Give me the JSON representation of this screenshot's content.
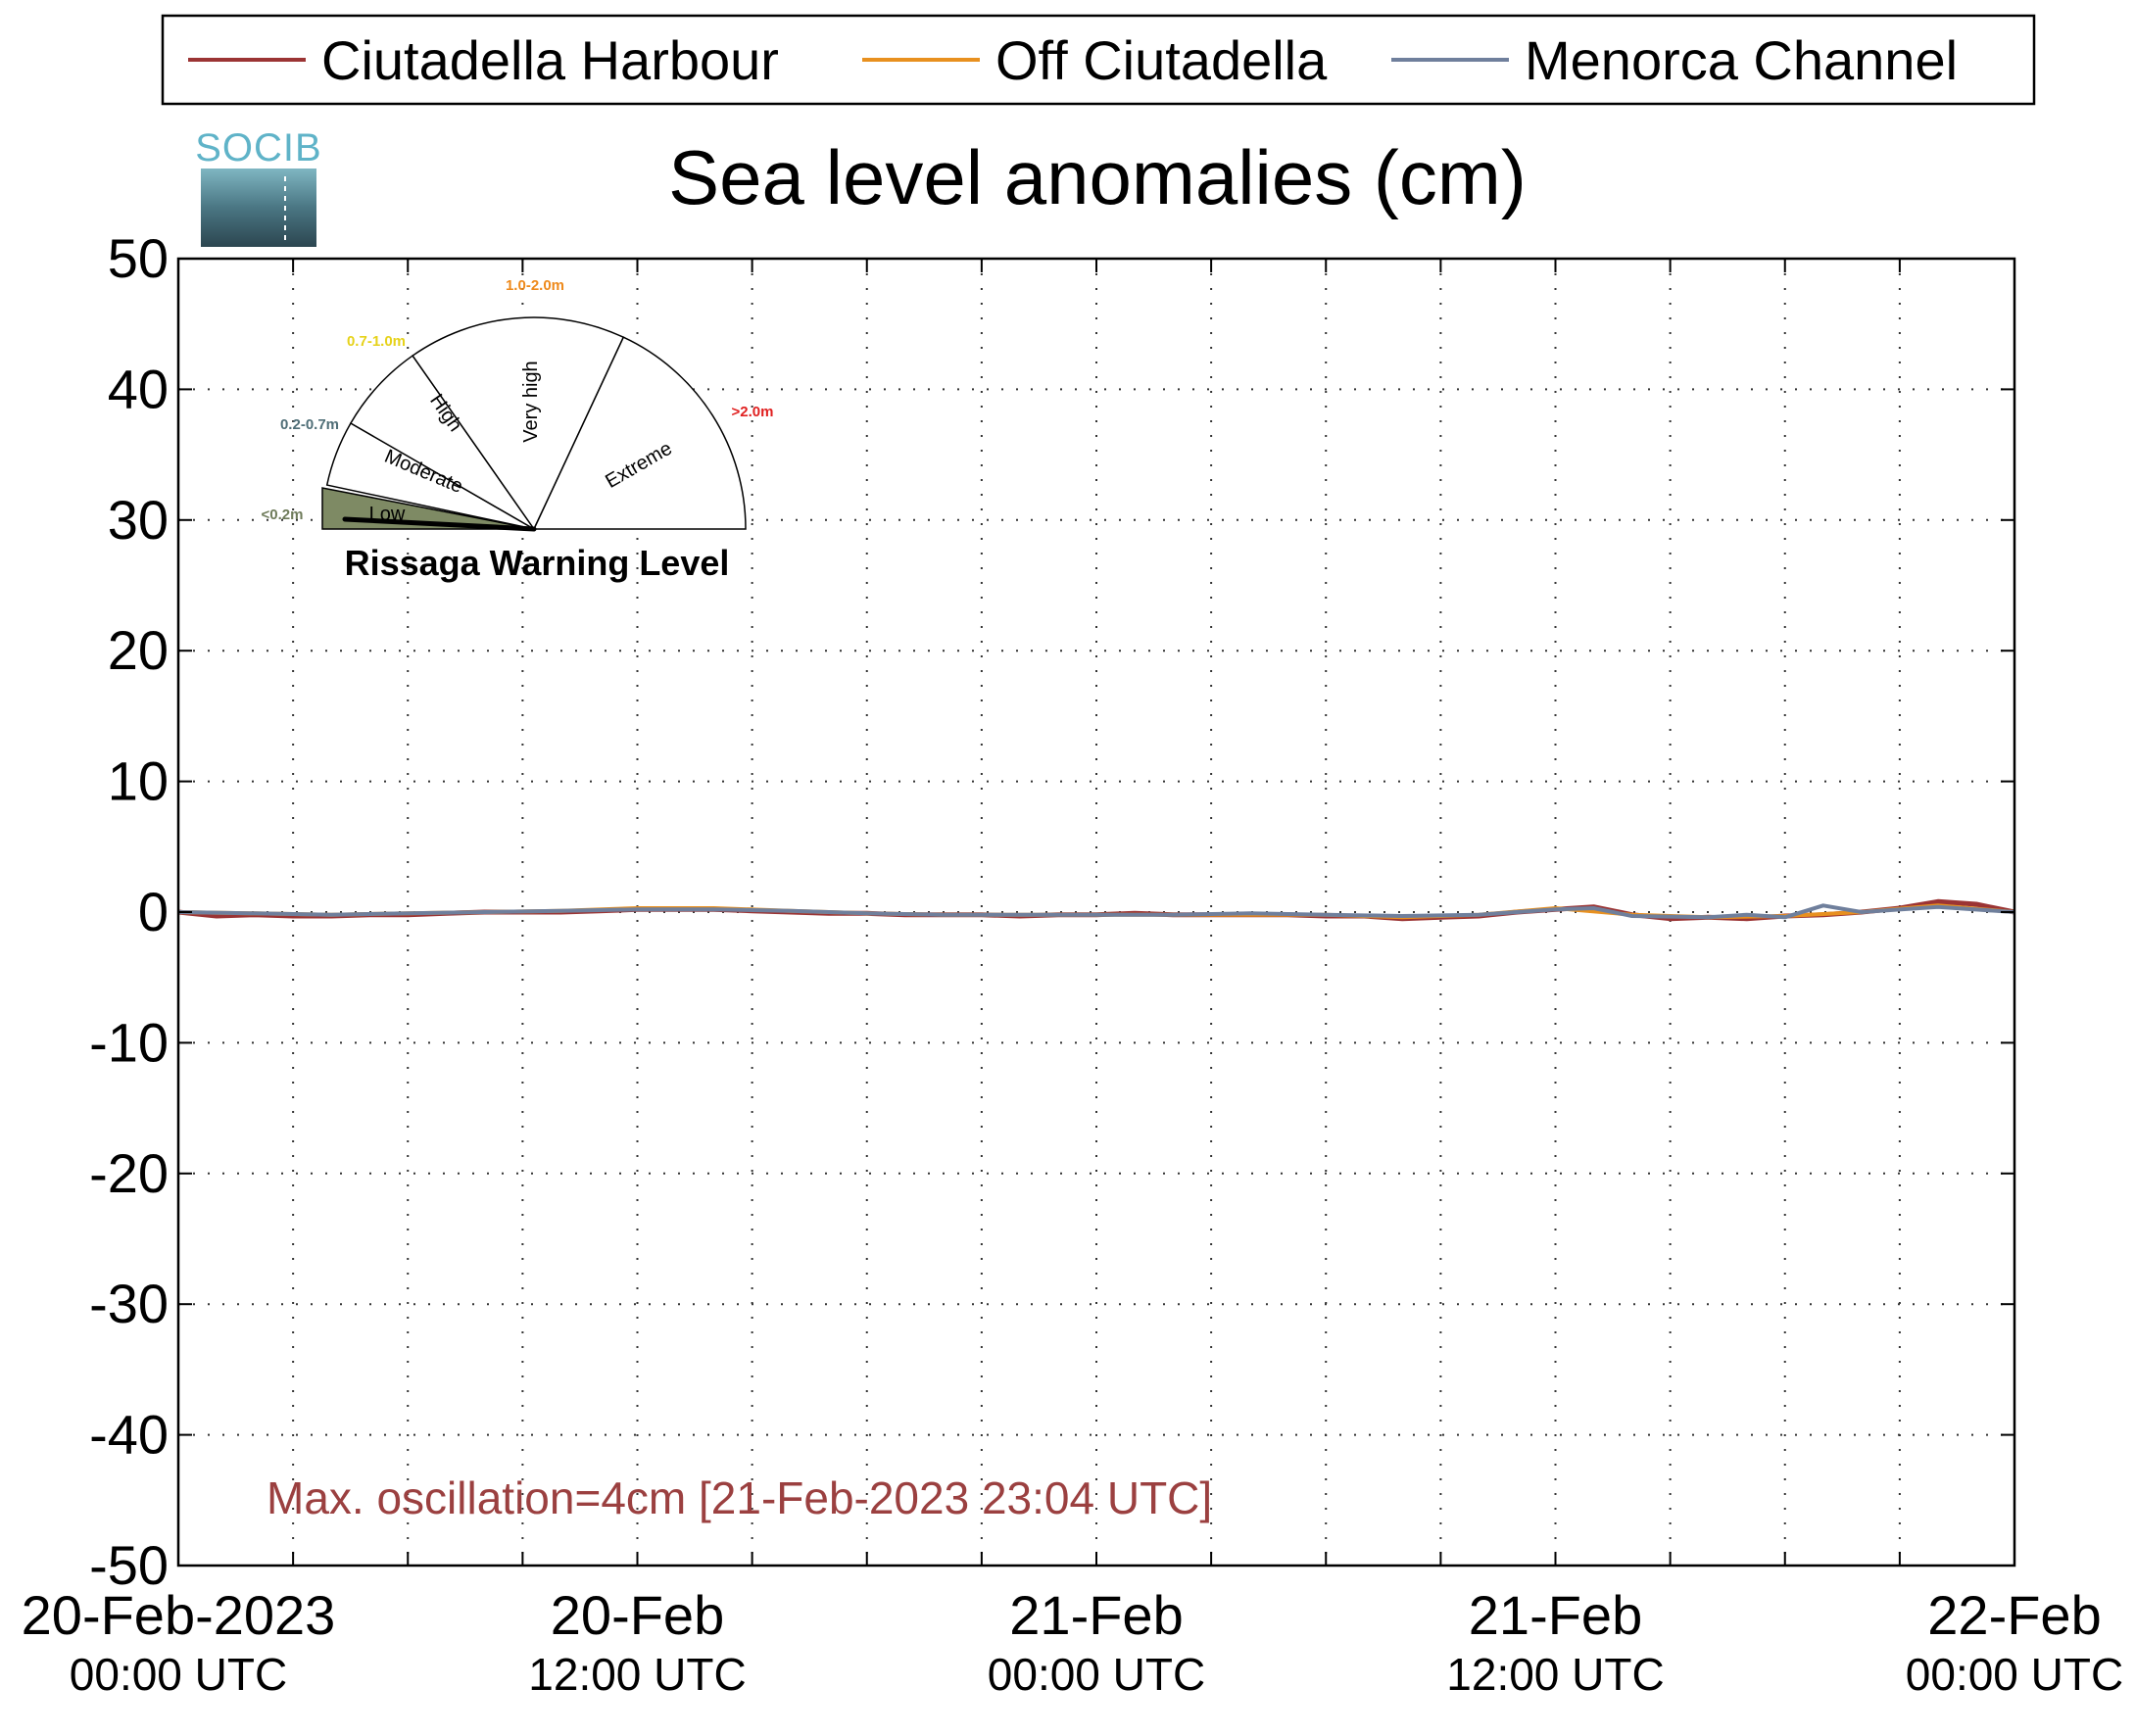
{
  "legend": {
    "entries": [
      {
        "label": "Ciutadella Harbour",
        "color": "#9b3434"
      },
      {
        "label": "Off Ciutadella",
        "color": "#e8901f"
      },
      {
        "label": "Menorca Channel",
        "color": "#6f7f9c"
      }
    ]
  },
  "logo_text": "SOCIB",
  "chart_data": {
    "type": "line",
    "title": "Sea level anomalies (cm)",
    "xlabel": "",
    "ylabel": "",
    "ylim": [
      -50,
      50
    ],
    "yticks": [
      50,
      40,
      30,
      20,
      10,
      0,
      -10,
      -20,
      -30,
      -40,
      -50
    ],
    "xlim": [
      0,
      48
    ],
    "x_unit": "hours since 20-Feb-2023 00:00 UTC",
    "xticks": [
      {
        "x": 0,
        "line1": "20-Feb-2023",
        "line2": "00:00 UTC"
      },
      {
        "x": 12,
        "line1": "20-Feb",
        "line2": "12:00 UTC"
      },
      {
        "x": 24,
        "line1": "21-Feb",
        "line2": "00:00 UTC"
      },
      {
        "x": 36,
        "line1": "21-Feb",
        "line2": "12:00 UTC"
      },
      {
        "x": 48,
        "line1": "22-Feb",
        "line2": "00:00 UTC"
      }
    ],
    "grid": true,
    "legend_position": "top",
    "annotation": "Max. oscillation=4cm [21-Feb-2023 23:04 UTC]",
    "annotation_color": "#9b4040",
    "series": [
      {
        "name": "Ciutadella Harbour",
        "color": "#9b3434",
        "x": [
          0,
          1,
          2,
          3,
          4,
          5,
          6,
          7,
          8,
          9,
          10,
          11,
          12,
          13,
          14,
          15,
          16,
          17,
          18,
          19,
          20,
          21,
          22,
          23,
          24,
          25,
          26,
          27,
          28,
          29,
          30,
          31,
          32,
          33,
          34,
          35,
          36,
          37,
          38,
          39,
          40,
          41,
          42,
          43,
          44,
          45,
          46,
          47,
          48
        ],
        "y": [
          0,
          -0.3,
          -0.2,
          -0.3,
          -0.3,
          -0.2,
          -0.2,
          -0.1,
          0,
          0,
          0,
          0.1,
          0.2,
          0.2,
          0.2,
          0.1,
          0,
          -0.1,
          -0.1,
          -0.2,
          -0.2,
          -0.2,
          -0.3,
          -0.2,
          -0.2,
          -0.1,
          -0.2,
          -0.2,
          -0.2,
          -0.2,
          -0.3,
          -0.3,
          -0.5,
          -0.4,
          -0.3,
          0,
          0.2,
          0.4,
          -0.2,
          -0.5,
          -0.4,
          -0.5,
          -0.3,
          -0.2,
          0,
          0.3,
          0.8,
          0.6,
          0
        ]
      },
      {
        "name": "Off Ciutadella",
        "color": "#e8901f",
        "x": [
          0,
          2,
          4,
          6,
          8,
          10,
          12,
          14,
          16,
          18,
          20,
          22,
          24,
          26,
          28,
          30,
          32,
          34,
          36,
          38,
          40,
          42,
          44,
          46,
          48
        ],
        "y": [
          0,
          -0.1,
          -0.2,
          -0.1,
          0,
          0.1,
          0.3,
          0.3,
          0.1,
          -0.1,
          -0.2,
          -0.2,
          -0.2,
          -0.2,
          -0.2,
          -0.2,
          -0.4,
          -0.2,
          0.3,
          -0.2,
          -0.4,
          -0.3,
          0,
          0.5,
          0
        ]
      },
      {
        "name": "Menorca Channel",
        "color": "#6f7f9c",
        "x": [
          0,
          2,
          4,
          6,
          8,
          10,
          12,
          14,
          16,
          18,
          20,
          22,
          24,
          26,
          28,
          30,
          32,
          34,
          36,
          37,
          38,
          40,
          41,
          42,
          43,
          44,
          46,
          48
        ],
        "y": [
          0,
          -0.1,
          -0.2,
          -0.1,
          0,
          0.1,
          0.2,
          0.2,
          0.1,
          -0.1,
          -0.2,
          -0.2,
          -0.2,
          -0.2,
          -0.1,
          -0.2,
          -0.3,
          -0.2,
          0.2,
          0.3,
          -0.3,
          -0.4,
          -0.2,
          -0.4,
          0.5,
          0,
          0.4,
          0
        ]
      }
    ]
  },
  "gauge": {
    "title": "Rissaga Warning Level",
    "level": "Low",
    "sectors": [
      {
        "label": "Low",
        "range": "<0.2m",
        "range_color": "#6e7b5a",
        "fill": "#7e8a64"
      },
      {
        "label": "Moderate",
        "range": "0.2-0.7m",
        "range_color": "#4f6e77",
        "fill": "#ffffff"
      },
      {
        "label": "High",
        "range": "0.7-1.0m",
        "range_color": "#e6d21a",
        "fill": "#ffffff"
      },
      {
        "label": "Very high",
        "range": "1.0-2.0m",
        "range_color": "#ee8a1c",
        "fill": "#ffffff"
      },
      {
        "label": "Extreme",
        "range": ">2.0m",
        "range_color": "#e02020",
        "fill": "#ffffff"
      }
    ]
  }
}
